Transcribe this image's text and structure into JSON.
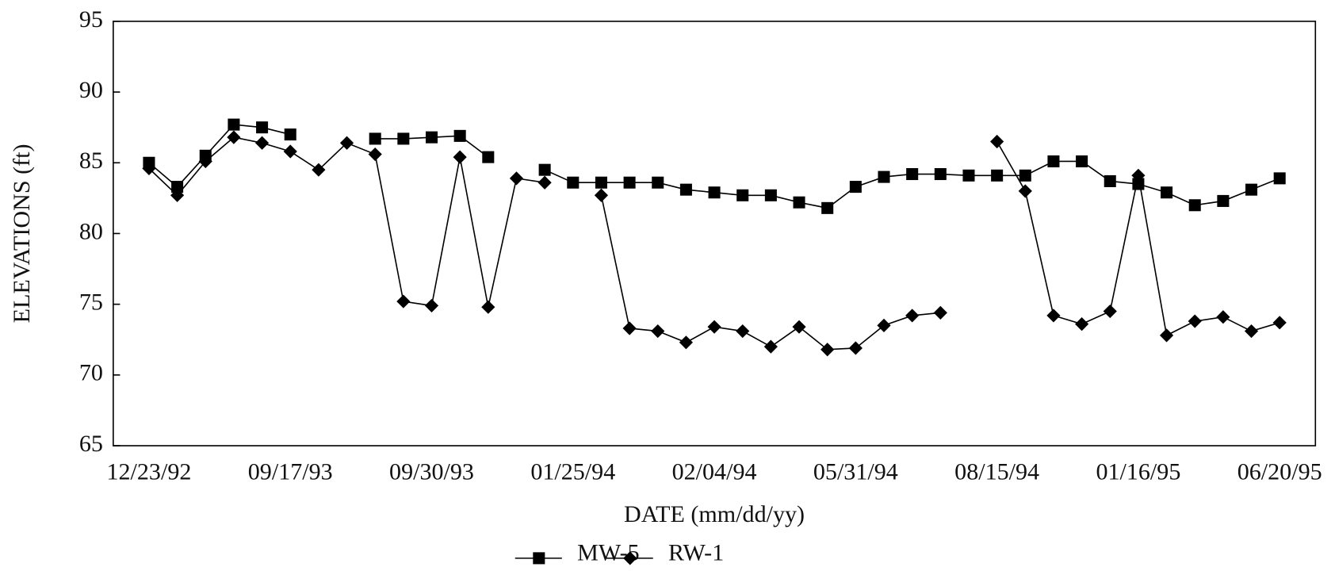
{
  "chart_data": {
    "type": "line",
    "xlabel": "DATE (mm/dd/yy)",
    "ylabel": "ELEVATIONS (ft)",
    "categories": [
      "12/23/92",
      null,
      null,
      null,
      null,
      "09/17/93",
      null,
      null,
      null,
      null,
      "09/30/93",
      null,
      null,
      null,
      null,
      "01/25/94",
      null,
      null,
      null,
      null,
      "02/04/94",
      null,
      null,
      null,
      null,
      "05/31/94",
      null,
      null,
      null,
      null,
      "08/15/94",
      null,
      null,
      null,
      null,
      "01/16/95",
      null,
      null,
      null,
      null,
      "06/20/95"
    ],
    "series": [
      {
        "name": "MW-5",
        "color": "#000000",
        "marker": "square",
        "values": [
          85.0,
          83.3,
          85.5,
          87.7,
          87.5,
          87.0,
          null,
          null,
          86.7,
          86.7,
          86.8,
          86.9,
          85.4,
          null,
          84.5,
          83.6,
          83.6,
          83.6,
          83.6,
          83.1,
          82.9,
          82.7,
          82.7,
          82.2,
          81.8,
          83.3,
          84.0,
          84.2,
          84.2,
          84.1,
          84.1,
          84.1,
          85.1,
          85.1,
          83.7,
          83.5,
          82.9,
          82.0,
          82.3,
          83.1,
          83.9
        ]
      },
      {
        "name": "RW-1",
        "color": "#000000",
        "marker": "diamond",
        "values": [
          84.6,
          82.7,
          85.1,
          86.8,
          86.4,
          85.8,
          84.5,
          86.4,
          85.6,
          75.2,
          74.9,
          85.4,
          74.8,
          83.9,
          83.6,
          null,
          82.7,
          73.3,
          73.1,
          72.3,
          73.4,
          73.1,
          72.0,
          73.4,
          71.8,
          71.9,
          73.5,
          74.2,
          74.4,
          null,
          86.5,
          83.0,
          74.2,
          73.6,
          74.5,
          84.1,
          72.8,
          73.8,
          74.1,
          73.1,
          73.7
        ]
      }
    ],
    "ylim": [
      65,
      95
    ],
    "yticks": [
      65,
      70,
      75,
      80,
      85,
      90,
      95
    ]
  }
}
